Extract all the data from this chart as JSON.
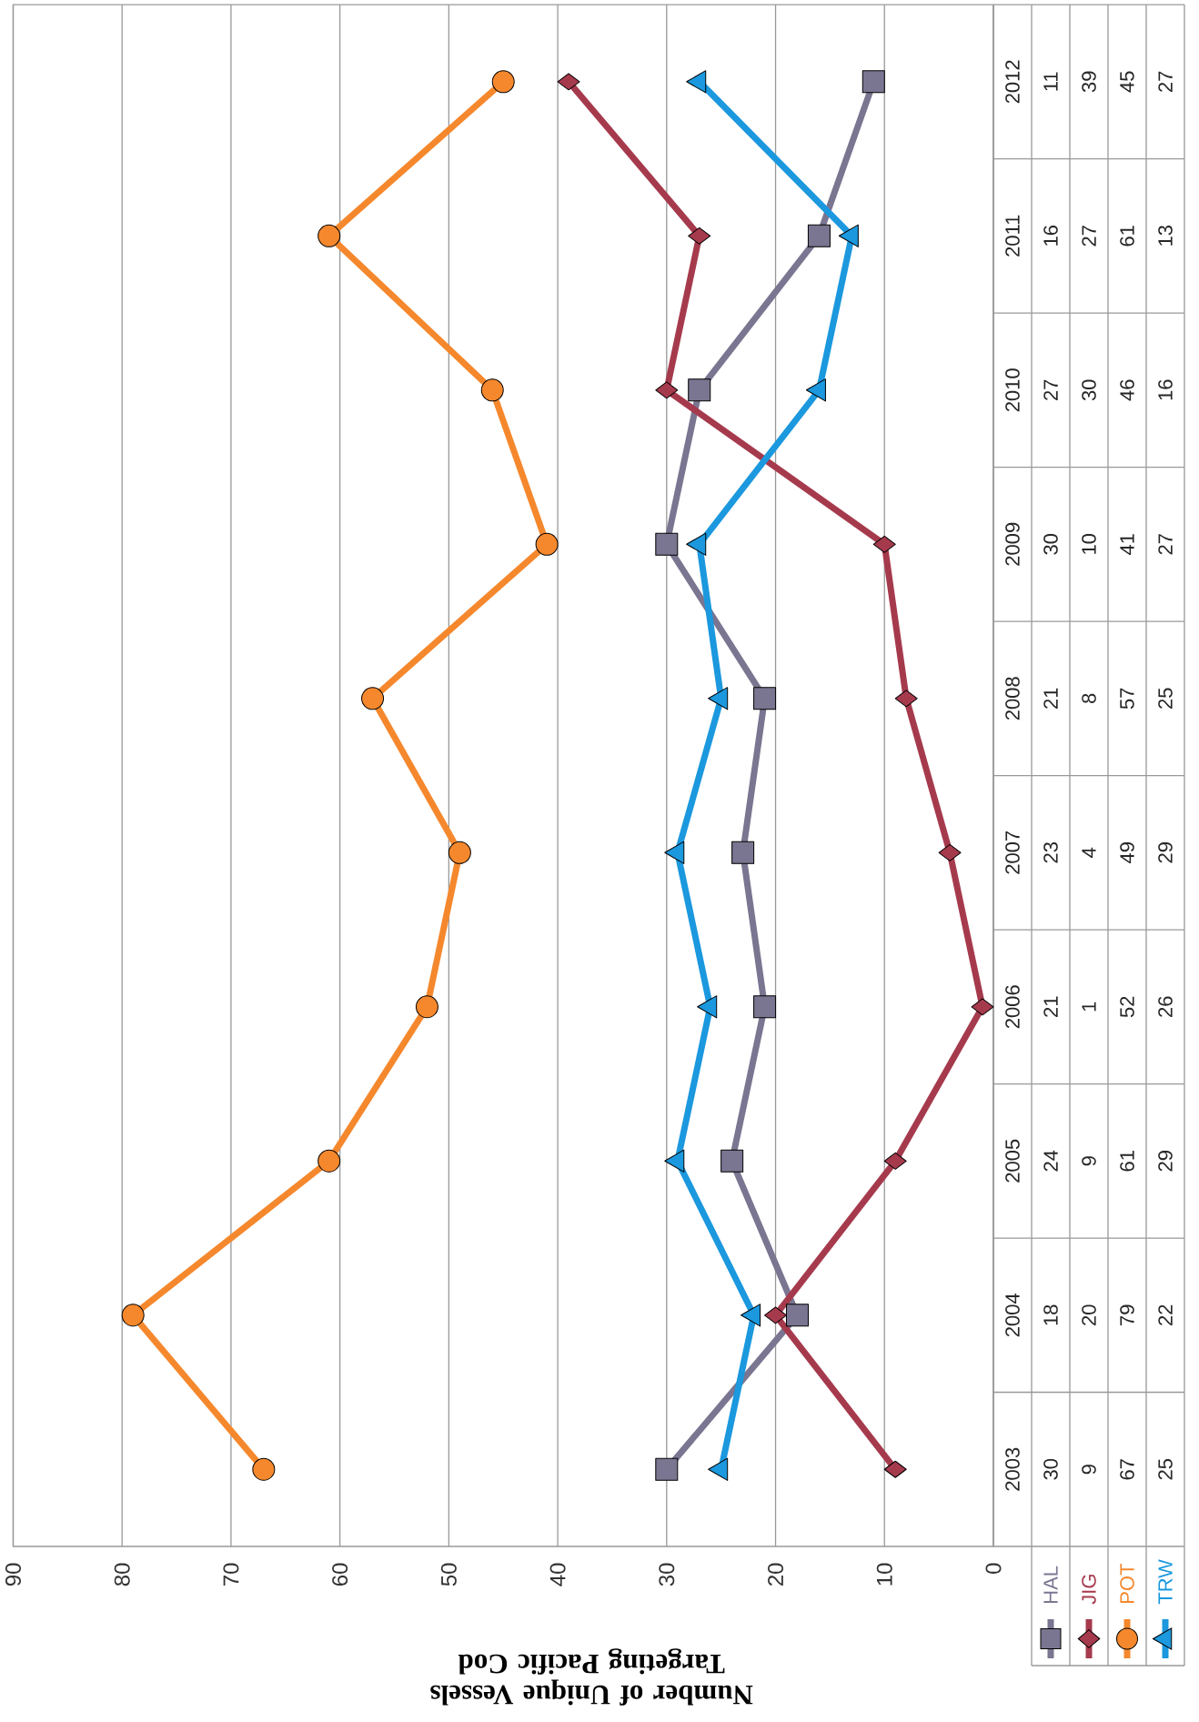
{
  "chart_data": {
    "type": "line",
    "orientation": "horizontal",
    "xlabel": "Number of Unique Vessels Targeting Pacific Cod",
    "categories": [
      "2012",
      "2011",
      "2010",
      "2009",
      "2008",
      "2007",
      "2006",
      "2005",
      "2004",
      "2003"
    ],
    "series": [
      {
        "name": "HAL",
        "color": "#7a7590",
        "marker": "square",
        "values": [
          11,
          16,
          27,
          30,
          21,
          23,
          21,
          24,
          18,
          30
        ]
      },
      {
        "name": "JIG",
        "color": "#a63a4d",
        "marker": "diamond",
        "values": [
          39,
          27,
          30,
          10,
          8,
          4,
          1,
          9,
          20,
          9
        ]
      },
      {
        "name": "POT",
        "color": "#f5882d",
        "marker": "circle",
        "values": [
          45,
          61,
          46,
          41,
          57,
          49,
          52,
          61,
          79,
          67
        ]
      },
      {
        "name": "TRW",
        "color": "#1b98de",
        "marker": "triangle",
        "values": [
          27,
          13,
          16,
          27,
          25,
          29,
          26,
          29,
          22,
          25
        ]
      }
    ],
    "xlim": [
      90,
      0
    ],
    "xticks": [
      90,
      80,
      70,
      60,
      50,
      40,
      30,
      20,
      10,
      0
    ],
    "grid": "x",
    "legend": "bottom right",
    "data_labels": true
  }
}
